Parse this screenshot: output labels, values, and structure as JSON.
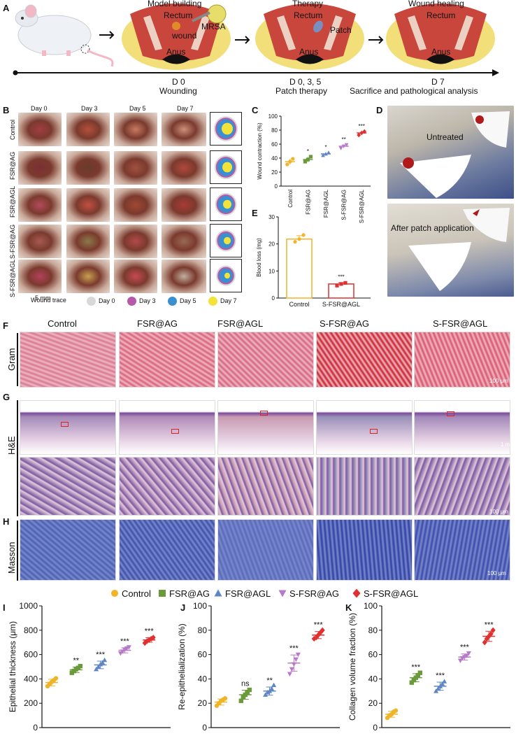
{
  "panelA": {
    "letter": "A",
    "stage1_title": "Model building",
    "stage2_title": "Therapy",
    "stage3_title": "Wound healing",
    "rectum": "Rectum",
    "wound": "wound",
    "mrsa": "MRSA",
    "patch": "Patch",
    "anus": "Anus",
    "t1_day": "D 0",
    "t1_desc": "Wounding",
    "t2_day": "D 0, 3, 5",
    "t2_desc": "Patch therapy",
    "t3_day": "D 7",
    "t3_desc": "Sacrifice and pathological analysis"
  },
  "panelB": {
    "letter": "B",
    "days": [
      "Day 0",
      "Day 3",
      "Day 5",
      "Day 7"
    ],
    "groups": [
      "Control",
      "FSR@AG",
      "FSR@AGL",
      "S-FSR@AG",
      "S-FSR@AGL"
    ],
    "scale": "5 mm",
    "legend_title": "Wound trace",
    "legend": [
      {
        "label": "Day 0",
        "color": "#d8d8d8"
      },
      {
        "label": "Day 3",
        "color": "#b45aa8"
      },
      {
        "label": "Day 5",
        "color": "#3a8fd0"
      },
      {
        "label": "Day 7",
        "color": "#f2e23a"
      }
    ]
  },
  "panelD": {
    "letter": "D",
    "untreated": "Untreated",
    "after": "After patch application"
  },
  "histology": {
    "letterF": "F",
    "letterG": "G",
    "letterH": "H",
    "groups": [
      "Control",
      "FSR@AG",
      "FSR@AGL",
      "S-FSR@AG",
      "S-FSR@AGL"
    ],
    "row_gram": "Gram",
    "row_he": "H&E",
    "row_masson": "Masson",
    "scale_gram": "100 μm",
    "scale_he_low": "1 mm",
    "scale_he_high": "100 μm",
    "scale_masson": "100 μm"
  },
  "legendIJK": [
    {
      "label": "Control",
      "color": "#f0b429",
      "marker": "circle"
    },
    {
      "label": "FSR@AG",
      "color": "#6a9a3a",
      "marker": "square"
    },
    {
      "label": "FSR@AGL",
      "color": "#5f86c4",
      "marker": "triangle-up"
    },
    {
      "label": "S-FSR@AG",
      "color": "#b87ac8",
      "marker": "triangle-down"
    },
    {
      "label": "S-FSR@AGL",
      "color": "#e03030",
      "marker": "diamond"
    }
  ],
  "chart_data": [
    {
      "id": "C",
      "type": "scatter",
      "ylabel": "Wound contraction (%)",
      "categories": [
        "Control",
        "FSR@AG",
        "FSR@AGL",
        "S-FSR@AG",
        "S-FSR@AGL"
      ],
      "ylim": [
        0,
        100
      ],
      "yticks": [
        0,
        20,
        40,
        60,
        80,
        100
      ],
      "means": [
        35,
        38,
        46,
        57,
        76
      ],
      "points": [
        [
          31,
          35,
          39
        ],
        [
          35,
          38,
          42
        ],
        [
          44,
          46,
          48
        ],
        [
          54,
          57,
          59
        ],
        [
          73,
          76,
          78
        ]
      ],
      "sig": [
        "",
        "*",
        "*",
        "**",
        "***"
      ],
      "colors": [
        "#f0b429",
        "#6a9a3a",
        "#5f86c4",
        "#b87ac8",
        "#e03030"
      ]
    },
    {
      "id": "E",
      "type": "bar",
      "ylabel": "Blood loss (mg)",
      "categories": [
        "Control",
        "S-FSR@AGL"
      ],
      "ylim": [
        0,
        30
      ],
      "yticks": [
        0,
        10,
        20,
        30
      ],
      "values": [
        21.8,
        5.2
      ],
      "points": [
        [
          20.8,
          21.8,
          23.3
        ],
        [
          4.6,
          5.2,
          5.6
        ]
      ],
      "sig": [
        "",
        "***"
      ],
      "colors": [
        "#f0b429",
        "#e03030"
      ]
    },
    {
      "id": "I",
      "type": "scatter",
      "ylabel": "Epithelial thickness (μm)",
      "ylim": [
        0,
        1000
      ],
      "yticks": [
        0,
        200,
        400,
        600,
        800,
        1000
      ],
      "means": [
        370,
        475,
        515,
        635,
        720
      ],
      "points": [
        [
          340,
          360,
          375,
          390,
          405
        ],
        [
          450,
          465,
          480,
          490,
          505
        ],
        [
          480,
          500,
          520,
          535,
          555
        ],
        [
          610,
          625,
          640,
          650,
          660
        ],
        [
          695,
          710,
          720,
          730,
          740
        ]
      ],
      "sig": [
        "",
        "**",
        "***",
        "***",
        "***"
      ]
    },
    {
      "id": "J",
      "type": "scatter",
      "ylabel": "Re-epithelialization (%)",
      "ylim": [
        0,
        100
      ],
      "yticks": [
        0,
        20,
        40,
        60,
        80,
        100
      ],
      "means": [
        21,
        27,
        30,
        53,
        76
      ],
      "points": [
        [
          18,
          20,
          22,
          23,
          24
        ],
        [
          22,
          25,
          27,
          29,
          31
        ],
        [
          27,
          29,
          30,
          32,
          35
        ],
        [
          44,
          48,
          52,
          56,
          60
        ],
        [
          73,
          74,
          76,
          78,
          80
        ]
      ],
      "sig": [
        "",
        "ns",
        "**",
        "***",
        "***"
      ]
    },
    {
      "id": "K",
      "type": "scatter",
      "ylabel": "Collagen volume fraction (%)",
      "ylim": [
        0,
        100
      ],
      "yticks": [
        0,
        20,
        40,
        60,
        80,
        100
      ],
      "means": [
        11,
        41,
        34,
        58,
        75
      ],
      "points": [
        [
          8,
          10,
          11,
          13,
          14
        ],
        [
          37,
          39,
          41,
          43,
          45
        ],
        [
          30,
          32,
          34,
          36,
          38
        ],
        [
          55,
          57,
          58,
          59,
          61
        ],
        [
          70,
          73,
          75,
          77,
          80
        ]
      ],
      "sig": [
        "",
        "***",
        "***",
        "***",
        "***"
      ]
    }
  ]
}
